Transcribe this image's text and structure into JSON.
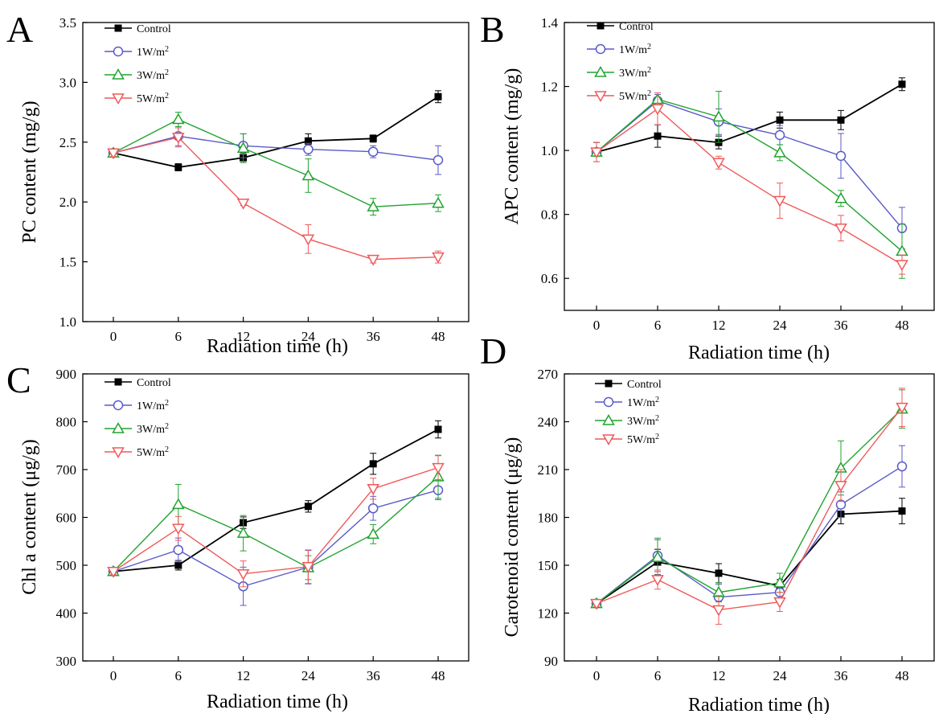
{
  "chart_data": [
    {
      "type": "line",
      "panel_letter": "A",
      "xlabel": "Radiation time (h)",
      "ylabel": "PC content (mg/g)",
      "categories": [
        "0",
        "6",
        "12",
        "24",
        "36",
        "48"
      ],
      "ylim": [
        1.0,
        3.5
      ],
      "yticks": [
        "1.0",
        "1.5",
        "2.0",
        "2.5",
        "3.0",
        "3.5"
      ],
      "legend_position": "top-left",
      "grid": false,
      "series": [
        {
          "name": "Control",
          "values": [
            2.41,
            2.29,
            2.37,
            2.51,
            2.53,
            2.88
          ],
          "errors": [
            0.03,
            0.03,
            0.04,
            0.06,
            0.03,
            0.05
          ]
        },
        {
          "name": "1W/m2",
          "values": [
            2.41,
            2.55,
            2.47,
            2.44,
            2.42,
            2.35
          ],
          "errors": [
            0.03,
            0.08,
            0.1,
            0.05,
            0.05,
            0.12
          ]
        },
        {
          "name": "3W/m2",
          "values": [
            2.41,
            2.69,
            2.45,
            2.22,
            1.96,
            1.99
          ],
          "errors": [
            0.03,
            0.06,
            0.12,
            0.14,
            0.07,
            0.07
          ]
        },
        {
          "name": "5W/m2",
          "values": [
            2.41,
            2.54,
            1.99,
            1.69,
            1.52,
            1.54
          ],
          "errors": [
            0.03,
            0.08,
            0.02,
            0.12,
            0.03,
            0.05
          ]
        }
      ]
    },
    {
      "type": "line",
      "panel_letter": "B",
      "xlabel": "Radiation time (h)",
      "ylabel": "APC content (mg/g)",
      "categories": [
        "0",
        "6",
        "12",
        "24",
        "36",
        "48"
      ],
      "ylim": [
        0.5,
        1.4
      ],
      "yticks": [
        "0.6",
        "0.8",
        "1.0",
        "1.2",
        "1.4"
      ],
      "legend_position": "top-left",
      "grid": false,
      "series": [
        {
          "name": "Control",
          "values": [
            0.995,
            1.045,
            1.025,
            1.095,
            1.095,
            1.207
          ],
          "errors": [
            0.03,
            0.035,
            0.02,
            0.025,
            0.03,
            0.02
          ]
        },
        {
          "name": "1W/m2",
          "values": [
            0.995,
            1.155,
            1.09,
            1.048,
            0.983,
            0.757
          ],
          "errors": [
            0.03,
            0.02,
            0.04,
            0.03,
            0.07,
            0.065
          ]
        },
        {
          "name": "3W/m2",
          "values": [
            0.995,
            1.16,
            1.105,
            0.993,
            0.85,
            0.685
          ],
          "errors": [
            0.03,
            0.02,
            0.08,
            0.025,
            0.025,
            0.085
          ]
        },
        {
          "name": "5W/m2",
          "values": [
            0.995,
            1.13,
            0.962,
            0.843,
            0.757,
            0.643
          ],
          "errors": [
            0.03,
            0.05,
            0.02,
            0.055,
            0.04,
            0.03
          ]
        }
      ]
    },
    {
      "type": "line",
      "panel_letter": "C",
      "xlabel": "Radiation time (h)",
      "ylabel": "Chl a content (μg/g)",
      "categories": [
        "0",
        "6",
        "12",
        "24",
        "36",
        "48"
      ],
      "ylim": [
        300,
        900
      ],
      "yticks": [
        "300",
        "400",
        "500",
        "600",
        "700",
        "800",
        "900"
      ],
      "legend_position": "top-left",
      "grid": false,
      "series": [
        {
          "name": "Control",
          "values": [
            487,
            500,
            589,
            623,
            712,
            784
          ],
          "errors": [
            6,
            10,
            12,
            12,
            22,
            18
          ]
        },
        {
          "name": "1W/m2",
          "values": [
            487,
            532,
            456,
            496,
            619,
            657
          ],
          "errors": [
            6,
            25,
            40,
            35,
            25,
            20
          ]
        },
        {
          "name": "3W/m2",
          "values": [
            487,
            627,
            567,
            495,
            565,
            685
          ],
          "errors": [
            6,
            42,
            37,
            25,
            20,
            45
          ]
        },
        {
          "name": "5W/m2",
          "values": [
            487,
            577,
            482,
            497,
            660,
            704
          ],
          "errors": [
            6,
            25,
            27,
            35,
            22,
            25
          ]
        }
      ]
    },
    {
      "type": "line",
      "panel_letter": "D",
      "xlabel": "Radiation time (h)",
      "ylabel": "Carotenoid content (μg/g)",
      "categories": [
        "0",
        "6",
        "12",
        "24",
        "36",
        "48"
      ],
      "ylim": [
        90,
        270
      ],
      "yticks": [
        "90",
        "120",
        "150",
        "180",
        "210",
        "240",
        "270"
      ],
      "legend_position": "top-left",
      "grid": false,
      "series": [
        {
          "name": "Control",
          "values": [
            126,
            152,
            145,
            137,
            182,
            184
          ],
          "errors": [
            2,
            8,
            6,
            4,
            6,
            8
          ]
        },
        {
          "name": "1W/m2",
          "values": [
            126,
            156,
            130,
            133,
            188,
            212
          ],
          "errors": [
            2,
            10,
            8,
            6,
            8,
            13
          ]
        },
        {
          "name": "3W/m2",
          "values": [
            126,
            155,
            133,
            139,
            211,
            248
          ],
          "errors": [
            2,
            12,
            6,
            6,
            17,
            12
          ]
        },
        {
          "name": "5W/m2",
          "values": [
            126,
            141,
            122,
            127,
            200,
            249
          ],
          "errors": [
            2,
            6,
            9,
            6,
            10,
            12
          ]
        }
      ]
    }
  ],
  "style": {
    "series_colors": [
      "#000000",
      "#5a5ac8",
      "#21a32f",
      "#ef5a5a"
    ],
    "series_markers": [
      "filled-square",
      "open-circle",
      "open-triangle-up",
      "open-triangle-down"
    ]
  }
}
